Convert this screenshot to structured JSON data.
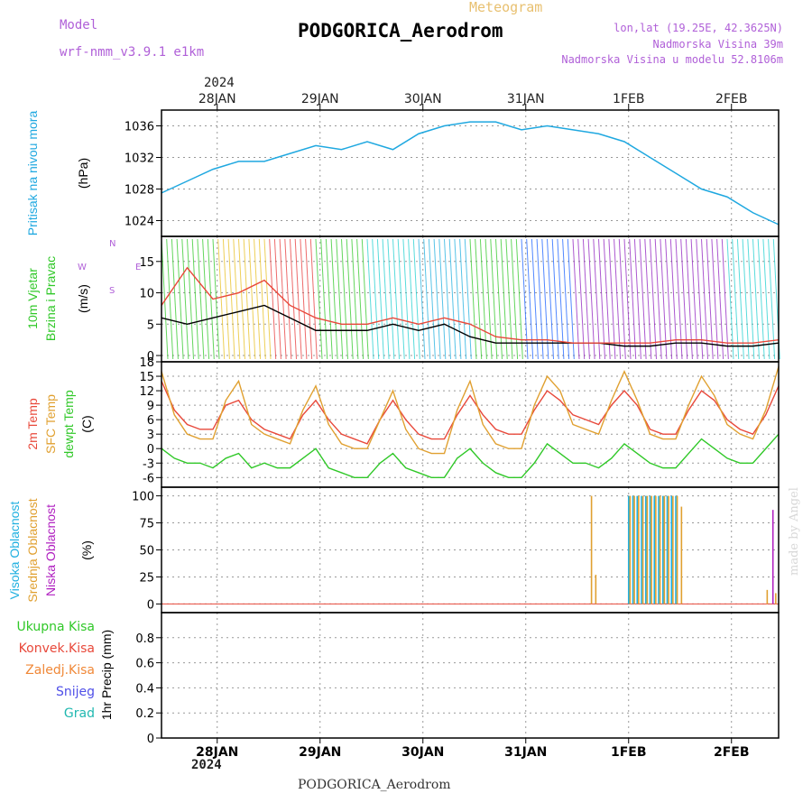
{
  "header": {
    "model_label": "Model",
    "model_name": "wrf-nmm_v3.9.1  e1km",
    "meteogram": "Meteogram",
    "title": "PODGORICA_Aerodrom",
    "lonlat": "lon,lat (19.25E, 42.3625N)",
    "altitude": "Nadmorska Visina 39m",
    "model_altitude": "Nadmorska Visina u modelu 52.8106m",
    "year_top": "2024",
    "year_bottom": "2024",
    "footer": "PODGORICA_Aerodrom",
    "credit": "made by Angel"
  },
  "colors": {
    "pressure": "#1fa8e0",
    "temp2m": "#e8483a",
    "sfc": "#e0a030",
    "dew": "#30c828",
    "high_cloud": "#20b0e0",
    "mid_cloud": "#e0a030",
    "low_cloud": "#b020c0",
    "wind_speed": "#000000",
    "gust": "#e8483a",
    "label_purple": "#b060d8"
  },
  "chart_data": [
    {
      "type": "line",
      "panel": "pressure",
      "ylabel_main": "Pritisak na nivou mora",
      "ylabel_unit": "(hPa)",
      "x_ticks": [
        "28JAN",
        "29JAN",
        "30JAN",
        "31JAN",
        "1FEB",
        "2FEB"
      ],
      "ylim": [
        1022,
        1038
      ],
      "y_ticks": [
        1024,
        1028,
        1032,
        1036
      ],
      "grid": true,
      "x": [
        0,
        6,
        12,
        18,
        24,
        30,
        36,
        42,
        48,
        54,
        60,
        66,
        72,
        78,
        84,
        90,
        96,
        102,
        108,
        114,
        120,
        126,
        132,
        138,
        144
      ],
      "values": [
        1027.5,
        1029,
        1030.5,
        1031.5,
        1031.5,
        1032.5,
        1033.5,
        1033,
        1034,
        1033,
        1035,
        1036,
        1036.5,
        1036.5,
        1035.5,
        1036,
        1035.5,
        1035,
        1034,
        1032,
        1030,
        1028,
        1027,
        1025,
        1023.5
      ]
    },
    {
      "type": "line",
      "panel": "wind",
      "ylabel_main": "10m Vjetar",
      "ylabel_sub": "Brzina i Pravac",
      "ylabel_unit": "(m/s)",
      "legend_compass": [
        "N",
        "W",
        "E",
        "S"
      ],
      "ylim": [
        -1,
        19
      ],
      "y_ticks": [
        0,
        5,
        10,
        15
      ],
      "grid": true,
      "series": [
        {
          "name": "",
          "x": [
            0,
            6,
            12,
            18,
            24,
            30,
            36,
            42,
            48,
            54,
            60,
            66,
            72,
            78,
            84,
            90,
            96,
            102,
            108,
            114,
            120,
            126,
            132,
            138,
            144
          ],
          "values": [
            6,
            5,
            6,
            7,
            8,
            6,
            4,
            4,
            4,
            5,
            4,
            5,
            3,
            2,
            2,
            2,
            2,
            2,
            1.5,
            1.5,
            2,
            2,
            1.5,
            1.5,
            2
          ]
        },
        {
          "name": "",
          "x": [
            0,
            6,
            12,
            18,
            24,
            30,
            36,
            42,
            48,
            54,
            60,
            66,
            72,
            78,
            84,
            90,
            96,
            102,
            108,
            114,
            120,
            126,
            132,
            138,
            144
          ],
          "values": [
            8,
            14,
            9,
            10,
            12,
            8,
            6,
            5,
            5,
            6,
            5,
            6,
            5,
            3,
            2.5,
            2.5,
            2,
            2,
            2,
            2,
            2.5,
            2.5,
            2,
            2,
            2.5
          ]
        }
      ]
    },
    {
      "type": "line",
      "panel": "temperature",
      "ylabel_lines": [
        "2m Temp",
        "SFC Temp",
        "dewpt Temp"
      ],
      "ylabel_unit": "(C)",
      "ylim": [
        -8,
        18
      ],
      "y_ticks": [
        -6,
        -3,
        0,
        3,
        6,
        9,
        12,
        15,
        18
      ],
      "grid": true,
      "x": [
        0,
        3,
        6,
        9,
        12,
        15,
        18,
        21,
        24,
        27,
        30,
        33,
        36,
        39,
        42,
        45,
        48,
        51,
        54,
        57,
        60,
        63,
        66,
        69,
        72,
        75,
        78,
        81,
        84,
        87,
        90,
        93,
        96,
        99,
        102,
        105,
        108,
        111,
        114,
        117,
        120,
        123,
        126,
        129,
        132,
        135,
        138,
        141,
        144
      ],
      "series": [
        {
          "name": "2m Temp",
          "values": [
            14,
            8,
            5,
            4,
            4,
            9,
            10,
            6,
            4,
            3,
            2,
            7,
            10,
            6,
            3,
            2,
            1,
            6,
            10,
            6,
            3,
            2,
            2,
            7,
            11,
            7,
            4,
            3,
            3,
            8,
            12,
            10,
            7,
            6,
            5,
            9,
            12,
            9,
            4,
            3,
            3,
            8,
            12,
            10,
            6,
            4,
            3,
            7,
            13
          ]
        },
        {
          "name": "SFC Temp",
          "values": [
            16,
            7,
            3,
            2,
            2,
            10,
            14,
            5,
            3,
            2,
            1,
            8,
            13,
            5,
            1,
            0,
            0,
            6,
            12,
            4,
            0,
            -1,
            -1,
            8,
            14,
            5,
            1,
            0,
            0,
            9,
            15,
            12,
            5,
            4,
            3,
            10,
            16,
            10,
            3,
            2,
            2,
            9,
            15,
            11,
            5,
            3,
            2,
            8,
            17
          ]
        },
        {
          "name": "dewpt Temp",
          "values": [
            0,
            -2,
            -3,
            -3,
            -4,
            -2,
            -1,
            -4,
            -3,
            -4,
            -4,
            -2,
            0,
            -4,
            -5,
            -6,
            -6,
            -3,
            -1,
            -4,
            -5,
            -6,
            -6,
            -2,
            0,
            -3,
            -5,
            -6,
            -6,
            -3,
            1,
            -1,
            -3,
            -3,
            -4,
            -2,
            1,
            -1,
            -3,
            -4,
            -4,
            -1,
            2,
            0,
            -2,
            -3,
            -3,
            0,
            3
          ]
        }
      ]
    },
    {
      "type": "bar",
      "panel": "cloud",
      "ylabel_lines": [
        "Visoka Oblacnost",
        "Srednja Oblacnost",
        "Niska Oblacnost"
      ],
      "ylabel_unit": "(%)",
      "ylim": [
        -8,
        108
      ],
      "y_ticks": [
        0,
        25,
        50,
        75,
        100
      ],
      "grid": true,
      "series": [
        {
          "name": "Visoka Oblacnost",
          "x": [
            109,
            110,
            111,
            112,
            113,
            114,
            115,
            116,
            117,
            118,
            119,
            120
          ],
          "values": [
            100,
            100,
            100,
            100,
            100,
            100,
            100,
            100,
            100,
            100,
            100,
            100
          ]
        },
        {
          "name": "Srednja Oblacnost",
          "x": [
            100,
            101,
            109,
            110,
            111,
            112,
            113,
            114,
            115,
            116,
            117,
            118,
            119,
            120,
            121,
            141,
            143
          ],
          "values": [
            100,
            27,
            100,
            100,
            100,
            100,
            100,
            100,
            100,
            100,
            100,
            100,
            100,
            100,
            90,
            13,
            10
          ]
        },
        {
          "name": "Niska Oblacnost",
          "x": [
            142
          ],
          "values": [
            87
          ]
        }
      ]
    },
    {
      "type": "bar",
      "panel": "precip",
      "ylabel_lines": [
        "Ukupna Kisa",
        "Konvek.Kisa",
        "Zaledj.Kisa",
        "Snijeg",
        "Grad"
      ],
      "ylabel_unit": "1hr Precip (mm)",
      "ylim": [
        0,
        1
      ],
      "y_ticks": [
        0,
        0.2,
        0.4,
        0.6,
        0.8
      ],
      "grid": true,
      "series": []
    }
  ]
}
